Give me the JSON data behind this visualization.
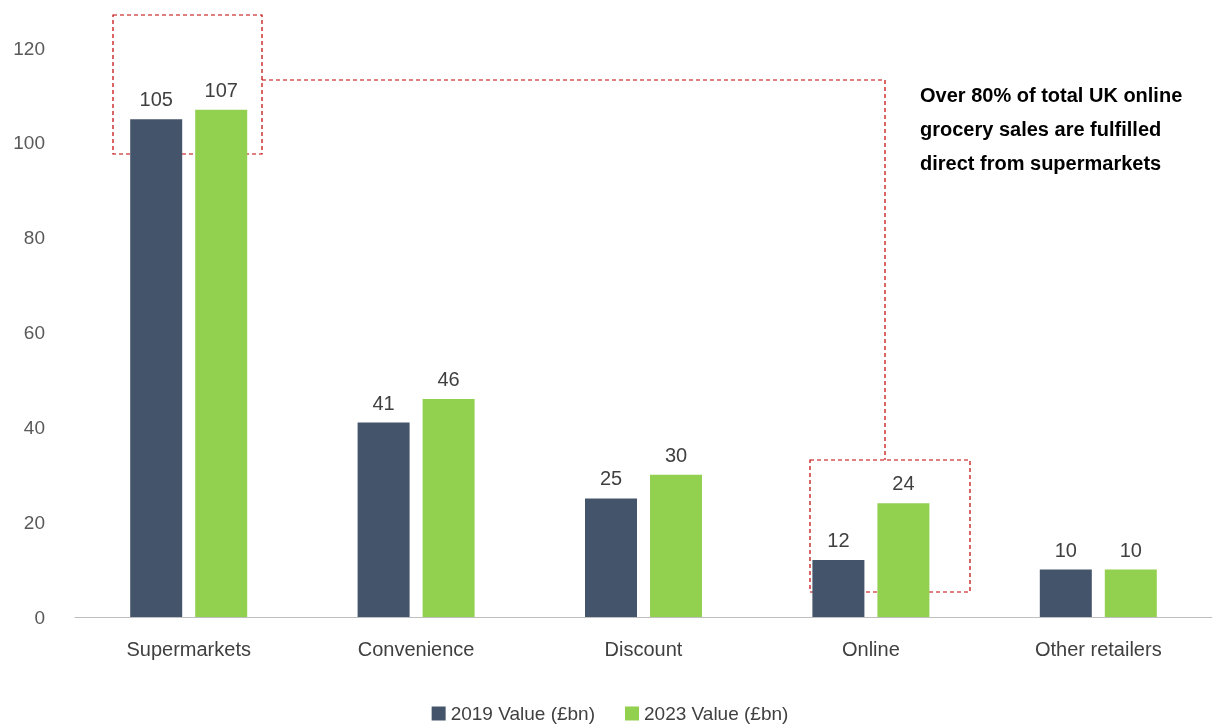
{
  "chart_data": {
    "type": "bar",
    "categories": [
      "Supermarkets",
      "Convenience",
      "Discount",
      "Online",
      "Other retailers"
    ],
    "series": [
      {
        "name": "2019 Value (£bn)",
        "color": "#44546a",
        "values": [
          105,
          41,
          25,
          12,
          10
        ]
      },
      {
        "name": "2023 Value (£bn)",
        "color": "#92d050",
        "values": [
          107,
          46,
          30,
          24,
          10
        ]
      }
    ],
    "ylim": [
      0,
      120
    ],
    "yticks": [
      0,
      20,
      40,
      60,
      80,
      100,
      120
    ],
    "grid": false,
    "legend": "bottom",
    "data_labels": true,
    "annotations": [
      "Over 80% of total UK online grocery sales are fulfilled direct from supermarkets"
    ]
  }
}
